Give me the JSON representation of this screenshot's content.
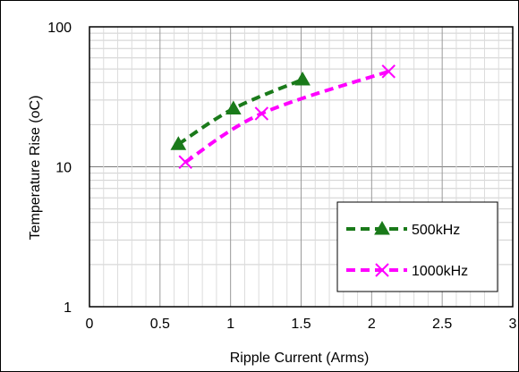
{
  "chart_data": {
    "type": "line",
    "xlabel": "Ripple Current (Arms)",
    "ylabel": "Temperature Rise (oC)",
    "xlim": [
      0,
      3
    ],
    "ylim": [
      1,
      100
    ],
    "yscale": "log",
    "x_ticks": [
      0,
      0.5,
      1,
      1.5,
      2,
      2.5,
      3
    ],
    "x_tick_labels": [
      "0",
      "0.5",
      "1",
      "1.5",
      "2",
      "2.5",
      "3"
    ],
    "y_ticks": [
      1,
      10,
      100
    ],
    "y_tick_labels": [
      "1",
      "10",
      "100"
    ],
    "grid": true,
    "legend_position": "bottom-right",
    "series": [
      {
        "name": "500kHz",
        "color": "#1a7a1a",
        "marker": "triangle",
        "line_style": "dashed",
        "x": [
          0.63,
          1.02,
          1.51
        ],
        "y": [
          14.5,
          26,
          42
        ]
      },
      {
        "name": "1000kHz",
        "color": "#ff00ff",
        "marker": "x",
        "line_style": "dashed",
        "x": [
          0.68,
          1.22,
          2.12
        ],
        "y": [
          10.8,
          24,
          48
        ]
      }
    ]
  }
}
